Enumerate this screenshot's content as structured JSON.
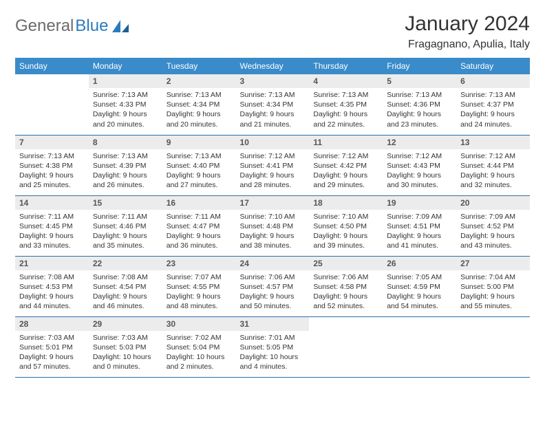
{
  "brand": {
    "part1": "General",
    "part2": "Blue"
  },
  "title": "January 2024",
  "location": "Fragagnano, Apulia, Italy",
  "colors": {
    "header_bg": "#3a8bc9",
    "header_text": "#ffffff",
    "daynum_bg": "#ececec",
    "row_border": "#2b6fa8",
    "brand_gray": "#6b6b6b",
    "brand_blue": "#2b7bbc"
  },
  "typography": {
    "title_fontsize": 30,
    "location_fontsize": 16,
    "header_fontsize": 12,
    "body_fontsize": 10.5
  },
  "day_headers": [
    "Sunday",
    "Monday",
    "Tuesday",
    "Wednesday",
    "Thursday",
    "Friday",
    "Saturday"
  ],
  "start_offset": 1,
  "days": [
    {
      "n": 1,
      "sunrise": "7:13 AM",
      "sunset": "4:33 PM",
      "daylight": "9 hours and 20 minutes."
    },
    {
      "n": 2,
      "sunrise": "7:13 AM",
      "sunset": "4:34 PM",
      "daylight": "9 hours and 20 minutes."
    },
    {
      "n": 3,
      "sunrise": "7:13 AM",
      "sunset": "4:34 PM",
      "daylight": "9 hours and 21 minutes."
    },
    {
      "n": 4,
      "sunrise": "7:13 AM",
      "sunset": "4:35 PM",
      "daylight": "9 hours and 22 minutes."
    },
    {
      "n": 5,
      "sunrise": "7:13 AM",
      "sunset": "4:36 PM",
      "daylight": "9 hours and 23 minutes."
    },
    {
      "n": 6,
      "sunrise": "7:13 AM",
      "sunset": "4:37 PM",
      "daylight": "9 hours and 24 minutes."
    },
    {
      "n": 7,
      "sunrise": "7:13 AM",
      "sunset": "4:38 PM",
      "daylight": "9 hours and 25 minutes."
    },
    {
      "n": 8,
      "sunrise": "7:13 AM",
      "sunset": "4:39 PM",
      "daylight": "9 hours and 26 minutes."
    },
    {
      "n": 9,
      "sunrise": "7:13 AM",
      "sunset": "4:40 PM",
      "daylight": "9 hours and 27 minutes."
    },
    {
      "n": 10,
      "sunrise": "7:12 AM",
      "sunset": "4:41 PM",
      "daylight": "9 hours and 28 minutes."
    },
    {
      "n": 11,
      "sunrise": "7:12 AM",
      "sunset": "4:42 PM",
      "daylight": "9 hours and 29 minutes."
    },
    {
      "n": 12,
      "sunrise": "7:12 AM",
      "sunset": "4:43 PM",
      "daylight": "9 hours and 30 minutes."
    },
    {
      "n": 13,
      "sunrise": "7:12 AM",
      "sunset": "4:44 PM",
      "daylight": "9 hours and 32 minutes."
    },
    {
      "n": 14,
      "sunrise": "7:11 AM",
      "sunset": "4:45 PM",
      "daylight": "9 hours and 33 minutes."
    },
    {
      "n": 15,
      "sunrise": "7:11 AM",
      "sunset": "4:46 PM",
      "daylight": "9 hours and 35 minutes."
    },
    {
      "n": 16,
      "sunrise": "7:11 AM",
      "sunset": "4:47 PM",
      "daylight": "9 hours and 36 minutes."
    },
    {
      "n": 17,
      "sunrise": "7:10 AM",
      "sunset": "4:48 PM",
      "daylight": "9 hours and 38 minutes."
    },
    {
      "n": 18,
      "sunrise": "7:10 AM",
      "sunset": "4:50 PM",
      "daylight": "9 hours and 39 minutes."
    },
    {
      "n": 19,
      "sunrise": "7:09 AM",
      "sunset": "4:51 PM",
      "daylight": "9 hours and 41 minutes."
    },
    {
      "n": 20,
      "sunrise": "7:09 AM",
      "sunset": "4:52 PM",
      "daylight": "9 hours and 43 minutes."
    },
    {
      "n": 21,
      "sunrise": "7:08 AM",
      "sunset": "4:53 PM",
      "daylight": "9 hours and 44 minutes."
    },
    {
      "n": 22,
      "sunrise": "7:08 AM",
      "sunset": "4:54 PM",
      "daylight": "9 hours and 46 minutes."
    },
    {
      "n": 23,
      "sunrise": "7:07 AM",
      "sunset": "4:55 PM",
      "daylight": "9 hours and 48 minutes."
    },
    {
      "n": 24,
      "sunrise": "7:06 AM",
      "sunset": "4:57 PM",
      "daylight": "9 hours and 50 minutes."
    },
    {
      "n": 25,
      "sunrise": "7:06 AM",
      "sunset": "4:58 PM",
      "daylight": "9 hours and 52 minutes."
    },
    {
      "n": 26,
      "sunrise": "7:05 AM",
      "sunset": "4:59 PM",
      "daylight": "9 hours and 54 minutes."
    },
    {
      "n": 27,
      "sunrise": "7:04 AM",
      "sunset": "5:00 PM",
      "daylight": "9 hours and 55 minutes."
    },
    {
      "n": 28,
      "sunrise": "7:03 AM",
      "sunset": "5:01 PM",
      "daylight": "9 hours and 57 minutes."
    },
    {
      "n": 29,
      "sunrise": "7:03 AM",
      "sunset": "5:03 PM",
      "daylight": "10 hours and 0 minutes."
    },
    {
      "n": 30,
      "sunrise": "7:02 AM",
      "sunset": "5:04 PM",
      "daylight": "10 hours and 2 minutes."
    },
    {
      "n": 31,
      "sunrise": "7:01 AM",
      "sunset": "5:05 PM",
      "daylight": "10 hours and 4 minutes."
    }
  ],
  "labels": {
    "sunrise": "Sunrise:",
    "sunset": "Sunset:",
    "daylight": "Daylight:"
  }
}
